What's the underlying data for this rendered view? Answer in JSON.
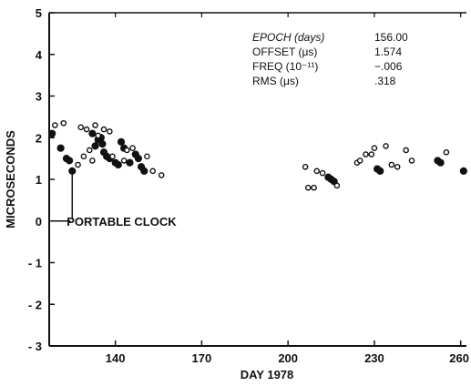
{
  "chart_data": {
    "type": "scatter",
    "title": "",
    "xlabel": "DAY 1978",
    "ylabel": "MICROSECONDS",
    "xlim": [
      117,
      262
    ],
    "ylim": [
      -3,
      5
    ],
    "xticks": [
      140,
      170,
      200,
      230,
      260
    ],
    "xtick_labels": [
      "140",
      "170",
      "200",
      "230",
      "260"
    ],
    "yticks": [
      -3,
      -2,
      -1,
      0,
      1,
      2,
      3,
      4,
      5
    ],
    "ytick_labels": [
      "- 3",
      "- 2",
      "- 1",
      "0",
      "1",
      "2",
      "3",
      "4",
      "5"
    ],
    "grid": false,
    "series": [
      {
        "marker": "filled",
        "points": [
          [
            118,
            2.1
          ],
          [
            121,
            1.75
          ],
          [
            123,
            1.5
          ],
          [
            124,
            1.45
          ],
          [
            125,
            1.2
          ],
          [
            132,
            2.1
          ],
          [
            133,
            1.8
          ],
          [
            134,
            1.95
          ],
          [
            135,
            2.0
          ],
          [
            135.5,
            1.85
          ],
          [
            136,
            1.65
          ],
          [
            137,
            1.55
          ],
          [
            138,
            1.5
          ],
          [
            140,
            1.4
          ],
          [
            141,
            1.35
          ],
          [
            142,
            1.9
          ],
          [
            143,
            1.75
          ],
          [
            145,
            1.4
          ],
          [
            147,
            1.6
          ],
          [
            148,
            1.5
          ],
          [
            149,
            1.3
          ],
          [
            150,
            1.2
          ],
          [
            214,
            1.05
          ],
          [
            215,
            1.0
          ],
          [
            216,
            0.95
          ],
          [
            231,
            1.25
          ],
          [
            232,
            1.2
          ],
          [
            252,
            1.45
          ],
          [
            253,
            1.4
          ],
          [
            261,
            1.2
          ]
        ]
      },
      {
        "marker": "open",
        "points": [
          [
            119,
            2.3
          ],
          [
            122,
            2.35
          ],
          [
            127,
            1.35
          ],
          [
            128,
            2.25
          ],
          [
            129,
            1.55
          ],
          [
            130,
            2.2
          ],
          [
            131,
            1.7
          ],
          [
            132,
            1.45
          ],
          [
            133,
            2.3
          ],
          [
            134,
            2.05
          ],
          [
            136,
            2.2
          ],
          [
            138,
            2.15
          ],
          [
            139,
            1.55
          ],
          [
            143,
            1.45
          ],
          [
            144,
            1.7
          ],
          [
            146,
            1.75
          ],
          [
            151,
            1.55
          ],
          [
            153,
            1.2
          ],
          [
            156,
            1.1
          ],
          [
            206,
            1.3
          ],
          [
            207,
            0.8
          ],
          [
            209,
            0.8
          ],
          [
            210,
            1.2
          ],
          [
            212,
            1.15
          ],
          [
            217,
            0.85
          ],
          [
            224,
            1.4
          ],
          [
            225,
            1.45
          ],
          [
            227,
            1.6
          ],
          [
            229,
            1.6
          ],
          [
            230,
            1.75
          ],
          [
            234,
            1.8
          ],
          [
            236,
            1.35
          ],
          [
            238,
            1.3
          ],
          [
            241,
            1.7
          ],
          [
            243,
            1.45
          ],
          [
            255,
            1.65
          ]
        ]
      }
    ],
    "annotations": [
      {
        "text": "PORTABLE CLOCK",
        "x": 125,
        "y": 0
      }
    ],
    "stats": [
      {
        "label": "EPOCH (days)",
        "value": "156.00",
        "italic": true
      },
      {
        "label": "OFFSET (μs)",
        "value": "1.574",
        "italic": false
      },
      {
        "label": "FREQ (10⁻¹¹)",
        "value": "−.006",
        "italic": false
      },
      {
        "label": "RMS (μs)",
        "value": ".318",
        "italic": false
      }
    ]
  }
}
